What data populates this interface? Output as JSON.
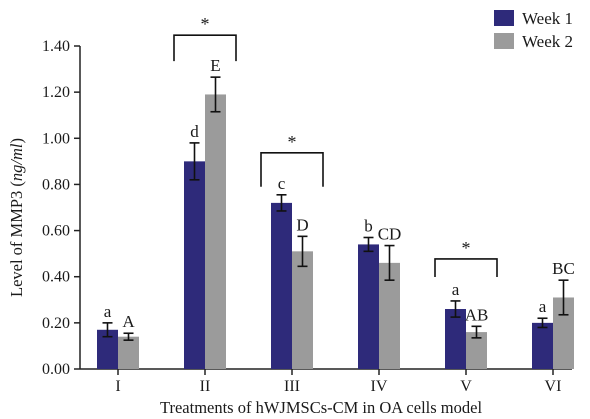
{
  "chart_data": {
    "type": "bar",
    "xlabel": "Treatments of hWJMSCs-CM in OA cells model",
    "ylabel_prefix": "Level of MMP3 (",
    "ylabel_unit": "ng/ml",
    "ylabel_suffix": ")",
    "ylim": [
      0,
      1.4
    ],
    "yticks": [
      "0.00",
      "0.20",
      "0.40",
      "0.60",
      "0.80",
      "1.00",
      "1.20",
      "1.40"
    ],
    "categories": [
      "I",
      "II",
      "III",
      "IV",
      "V",
      "VI"
    ],
    "legend_position": "top-right",
    "grid": false,
    "series": [
      {
        "name": "Week 1",
        "color": "#2e2a7a",
        "values": [
          0.17,
          0.9,
          0.72,
          0.54,
          0.26,
          0.2
        ],
        "errors": [
          0.03,
          0.08,
          0.035,
          0.03,
          0.035,
          0.02
        ],
        "letters": [
          "a",
          "d",
          "c",
          "b",
          "a",
          "a"
        ]
      },
      {
        "name": "Week 2",
        "color": "#9b9b9b",
        "values": [
          0.14,
          1.19,
          0.51,
          0.46,
          0.16,
          0.31
        ],
        "errors": [
          0.015,
          0.075,
          0.065,
          0.075,
          0.025,
          0.075
        ],
        "letters": [
          "A",
          "E",
          "D",
          "CD",
          "AB",
          "BC"
        ]
      }
    ],
    "significance_brackets": [
      {
        "category_index": 1,
        "label": "*"
      },
      {
        "category_index": 2,
        "label": "*"
      },
      {
        "category_index": 4,
        "label": "*"
      }
    ]
  }
}
